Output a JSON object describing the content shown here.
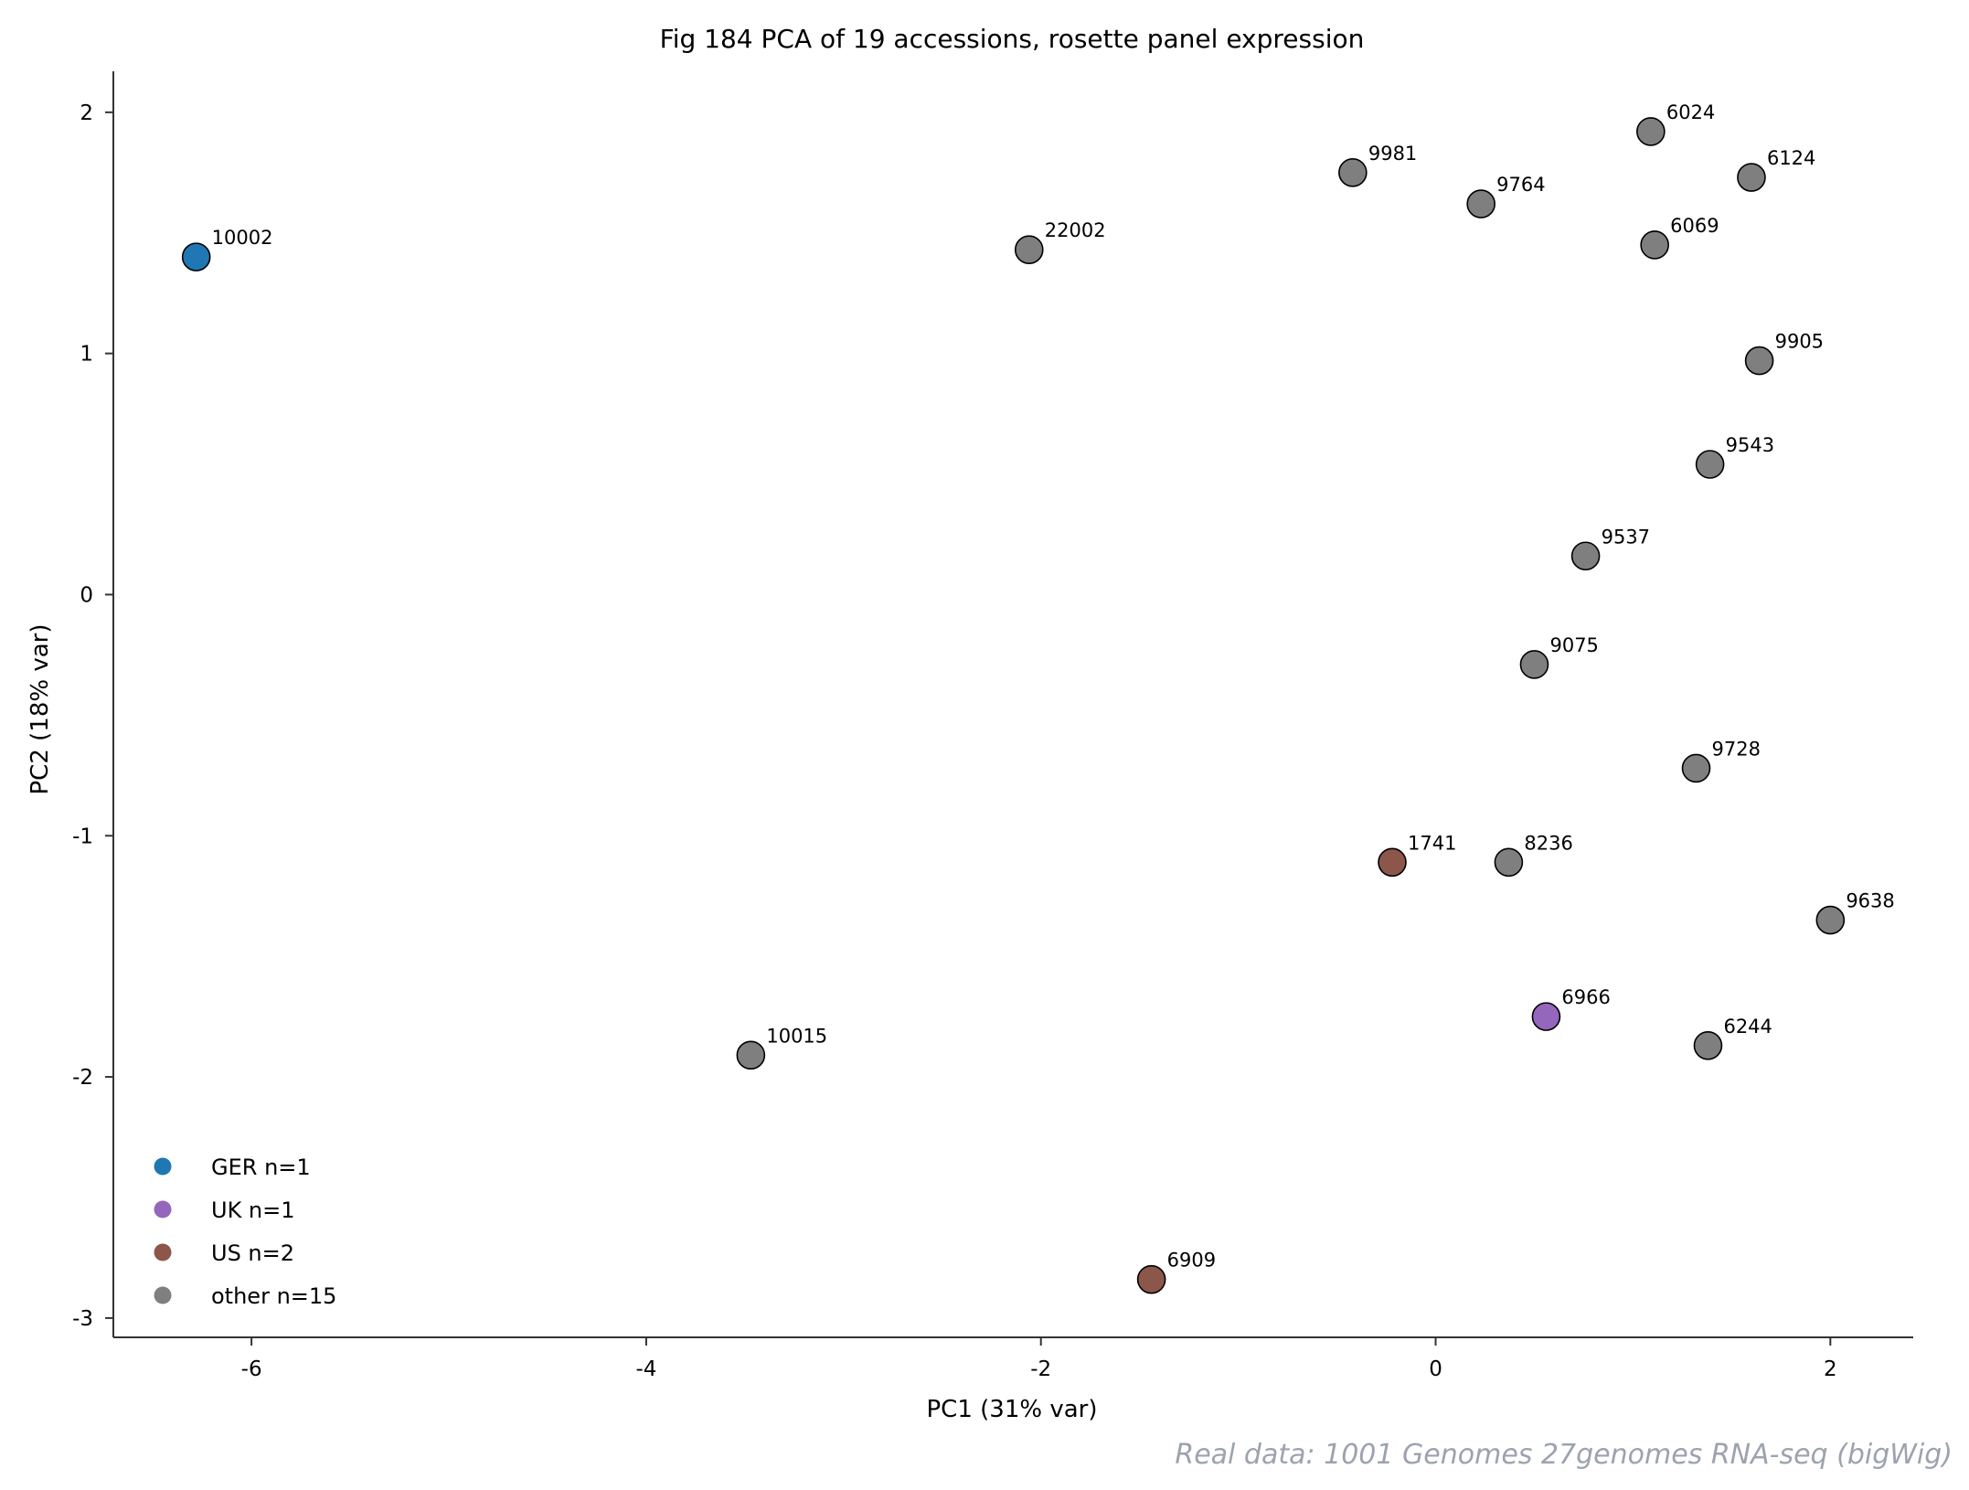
{
  "chart_data": {
    "type": "scatter",
    "title": "Fig 184  PCA of 19 accessions, rosette panel expression",
    "xlabel": "PC1 (31% var)",
    "ylabel": "PC2 (18% var)",
    "xlim": [
      -6.7,
      2.42
    ],
    "ylim": [
      -3.08,
      2.17
    ],
    "xticks": [
      -6,
      -4,
      -2,
      0,
      2
    ],
    "yticks": [
      2,
      1,
      0,
      -1,
      -2,
      -3
    ],
    "grid": false,
    "legend_position": "lower-left",
    "source_note": "Real data: 1001 Genomes 27genomes RNA-seq (bigWig)",
    "groups": [
      {
        "name": "GER n=1",
        "color": "#1f77b4"
      },
      {
        "name": "UK n=1",
        "color": "#9467bd"
      },
      {
        "name": "US n=2",
        "color": "#8c564b"
      },
      {
        "name": "other n=15",
        "color": "#7f7f7f"
      }
    ],
    "points": [
      {
        "label": "10002",
        "x": -6.28,
        "y": 1.4,
        "group": 0
      },
      {
        "label": "22002",
        "x": -2.06,
        "y": 1.43,
        "group": 3
      },
      {
        "label": "9981",
        "x": -0.42,
        "y": 1.75,
        "group": 3
      },
      {
        "label": "9764",
        "x": 0.23,
        "y": 1.62,
        "group": 3
      },
      {
        "label": "6024",
        "x": 1.09,
        "y": 1.92,
        "group": 3
      },
      {
        "label": "6124",
        "x": 1.6,
        "y": 1.73,
        "group": 3
      },
      {
        "label": "6069",
        "x": 1.11,
        "y": 1.45,
        "group": 3
      },
      {
        "label": "9905",
        "x": 1.64,
        "y": 0.97,
        "group": 3
      },
      {
        "label": "9543",
        "x": 1.39,
        "y": 0.54,
        "group": 3
      },
      {
        "label": "9537",
        "x": 0.76,
        "y": 0.16,
        "group": 3
      },
      {
        "label": "9075",
        "x": 0.5,
        "y": -0.29,
        "group": 3
      },
      {
        "label": "9728",
        "x": 1.32,
        "y": -0.72,
        "group": 3
      },
      {
        "label": "1741",
        "x": -0.22,
        "y": -1.11,
        "group": 2
      },
      {
        "label": "8236",
        "x": 0.37,
        "y": -1.11,
        "group": 3
      },
      {
        "label": "9638",
        "x": 2.0,
        "y": -1.35,
        "group": 3
      },
      {
        "label": "6966",
        "x": 0.56,
        "y": -1.75,
        "group": 1
      },
      {
        "label": "6244",
        "x": 1.38,
        "y": -1.87,
        "group": 3
      },
      {
        "label": "10015",
        "x": -3.47,
        "y": -1.91,
        "group": 3
      },
      {
        "label": "6909",
        "x": -1.44,
        "y": -2.84,
        "group": 2
      }
    ]
  }
}
